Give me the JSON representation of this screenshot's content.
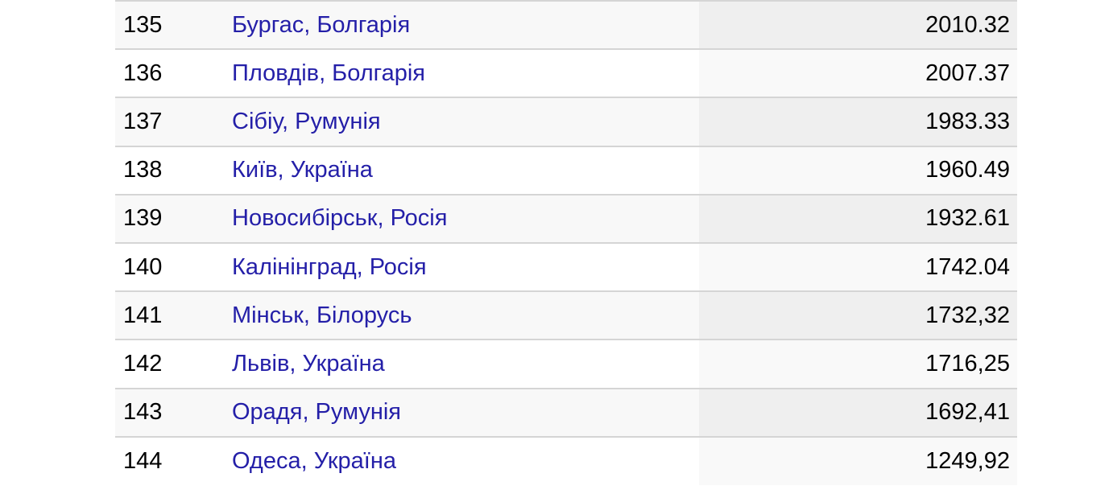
{
  "colors": {
    "page_background": "#ffffff",
    "row_border": "#d5d5d5",
    "link": "#241fa8",
    "text": "#000000",
    "row_odd_background": "#f8f8f8",
    "row_odd_value_background": "#efefef",
    "row_even_background": "#ffffff",
    "row_even_value_background": "#f9f9f9"
  },
  "table": {
    "rows": [
      {
        "rank": "135",
        "city": "Бургас, Болгарія",
        "value": "2010.32"
      },
      {
        "rank": "136",
        "city": "Пловдів, Болгарія",
        "value": "2007.37"
      },
      {
        "rank": "137",
        "city": "Сібіу, Румунія",
        "value": "1983.33"
      },
      {
        "rank": "138",
        "city": "Київ, Україна",
        "value": "1960.49"
      },
      {
        "rank": "139",
        "city": "Новосибірськ, Росія",
        "value": "1932.61"
      },
      {
        "rank": "140",
        "city": "Калінінград, Росія",
        "value": "1742.04"
      },
      {
        "rank": "141",
        "city": "Мінськ, Білорусь",
        "value": "1732,32"
      },
      {
        "rank": "142",
        "city": "Львів, Україна",
        "value": "1716,25"
      },
      {
        "rank": "143",
        "city": "Орадя, Румунія",
        "value": "1692,41"
      },
      {
        "rank": "144",
        "city": "Одеса, Україна",
        "value": "1249,92"
      }
    ]
  }
}
